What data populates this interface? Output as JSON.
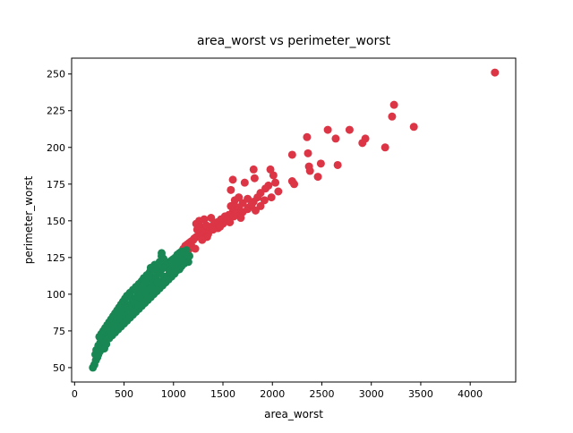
{
  "chart_data": {
    "type": "scatter",
    "title": "area_worst vs perimeter_worst",
    "xlabel": "area_worst",
    "ylabel": "perimeter_worst",
    "xlim": [
      -30,
      4460
    ],
    "ylim": [
      40.2,
      260.8
    ],
    "xticks": [
      0,
      500,
      1000,
      1500,
      2000,
      2500,
      3000,
      3500,
      4000
    ],
    "yticks": [
      50,
      75,
      100,
      125,
      150,
      175,
      200,
      225,
      250
    ],
    "grid": false,
    "legend": "none",
    "series": [
      {
        "color": "#dc3545",
        "points": [
          [
            4250,
            251
          ],
          [
            3230,
            229
          ],
          [
            3210,
            221
          ],
          [
            3430,
            214
          ],
          [
            2560,
            212
          ],
          [
            2780,
            212
          ],
          [
            2350,
            207
          ],
          [
            2640,
            206
          ],
          [
            2940,
            206
          ],
          [
            2910,
            203
          ],
          [
            3140,
            200
          ],
          [
            2360,
            196
          ],
          [
            2200,
            195
          ],
          [
            2490,
            189
          ],
          [
            2660,
            188
          ],
          [
            2370,
            187
          ],
          [
            2380,
            184
          ],
          [
            2460,
            180
          ],
          [
            1810,
            185
          ],
          [
            1980,
            185
          ],
          [
            1820,
            179
          ],
          [
            1600,
            178
          ],
          [
            2010,
            181
          ],
          [
            1720,
            176
          ],
          [
            2030,
            176
          ],
          [
            2200,
            177
          ],
          [
            2220,
            175
          ],
          [
            1960,
            174
          ],
          [
            1930,
            172
          ],
          [
            1580,
            171
          ],
          [
            2060,
            170
          ],
          [
            1880,
            169
          ],
          [
            1990,
            166
          ],
          [
            1660,
            166
          ],
          [
            1620,
            164
          ],
          [
            1750,
            165
          ],
          [
            1850,
            166
          ],
          [
            1810,
            163
          ],
          [
            1920,
            164
          ],
          [
            1880,
            160
          ],
          [
            1830,
            157
          ],
          [
            1760,
            159
          ],
          [
            1700,
            162
          ],
          [
            1660,
            159
          ],
          [
            1620,
            160
          ],
          [
            1580,
            160
          ],
          [
            1600,
            156
          ],
          [
            1560,
            154
          ],
          [
            1640,
            155
          ],
          [
            1700,
            156
          ],
          [
            1750,
            158
          ],
          [
            1790,
            161
          ],
          [
            1520,
            153
          ],
          [
            1480,
            151
          ],
          [
            1440,
            149
          ],
          [
            1400,
            147
          ],
          [
            1360,
            145
          ],
          [
            1320,
            143
          ],
          [
            1290,
            142
          ],
          [
            1260,
            140
          ],
          [
            1230,
            139
          ],
          [
            1200,
            137
          ],
          [
            1180,
            136
          ],
          [
            1160,
            135
          ],
          [
            1140,
            134
          ],
          [
            1120,
            133
          ],
          [
            1100,
            131
          ],
          [
            1380,
            152
          ],
          [
            1310,
            151
          ],
          [
            1260,
            150
          ],
          [
            1230,
            148
          ],
          [
            1240,
            144
          ],
          [
            1270,
            146
          ],
          [
            1330,
            147
          ],
          [
            1420,
            148
          ],
          [
            1450,
            145
          ],
          [
            1500,
            148
          ],
          [
            1530,
            150
          ],
          [
            1470,
            146
          ],
          [
            1350,
            141
          ],
          [
            1300,
            138
          ],
          [
            1210,
            138
          ],
          [
            1180,
            133
          ],
          [
            1220,
            131
          ],
          [
            1130,
            128
          ],
          [
            1110,
            127
          ],
          [
            1150,
            130
          ],
          [
            1080,
            126
          ],
          [
            1060,
            126
          ],
          [
            1400,
            144
          ],
          [
            1550,
            151
          ],
          [
            1610,
            153
          ],
          [
            1680,
            152
          ],
          [
            1570,
            149
          ],
          [
            1340,
            139
          ],
          [
            1290,
            137
          ]
        ]
      },
      {
        "color": "#198754",
        "points": [
          [
            185,
            50
          ],
          [
            200,
            52
          ],
          [
            215,
            55
          ],
          [
            230,
            57
          ],
          [
            240,
            59
          ],
          [
            255,
            61
          ],
          [
            265,
            63
          ],
          [
            275,
            65
          ],
          [
            290,
            67
          ],
          [
            300,
            69
          ],
          [
            315,
            70
          ],
          [
            330,
            72
          ],
          [
            345,
            73
          ],
          [
            360,
            75
          ],
          [
            375,
            76
          ],
          [
            390,
            78
          ],
          [
            405,
            79
          ],
          [
            420,
            81
          ],
          [
            440,
            82
          ],
          [
            455,
            84
          ],
          [
            470,
            85
          ],
          [
            490,
            87
          ],
          [
            505,
            88
          ],
          [
            520,
            90
          ],
          [
            540,
            91
          ],
          [
            560,
            93
          ],
          [
            580,
            94
          ],
          [
            600,
            96
          ],
          [
            620,
            97
          ],
          [
            640,
            99
          ],
          [
            660,
            100
          ],
          [
            680,
            102
          ],
          [
            700,
            103
          ],
          [
            720,
            105
          ],
          [
            740,
            106
          ],
          [
            760,
            108
          ],
          [
            780,
            109
          ],
          [
            800,
            111
          ],
          [
            820,
            112
          ],
          [
            840,
            114
          ],
          [
            860,
            115
          ],
          [
            880,
            117
          ],
          [
            900,
            118
          ],
          [
            920,
            119
          ],
          [
            940,
            121
          ],
          [
            960,
            122
          ],
          [
            980,
            123
          ],
          [
            1000,
            124
          ],
          [
            1020,
            125
          ],
          [
            1040,
            127
          ],
          [
            1060,
            128
          ],
          [
            1080,
            129
          ],
          [
            1100,
            129
          ],
          [
            1120,
            127
          ],
          [
            1140,
            125
          ],
          [
            1100,
            124
          ],
          [
            1090,
            122
          ],
          [
            1060,
            121
          ],
          [
            1040,
            120
          ],
          [
            1010,
            118
          ],
          [
            980,
            116
          ],
          [
            950,
            113
          ],
          [
            910,
            111
          ],
          [
            880,
            109
          ],
          [
            850,
            107
          ],
          [
            820,
            105
          ],
          [
            790,
            103
          ],
          [
            760,
            101
          ],
          [
            730,
            99
          ],
          [
            700,
            97
          ],
          [
            670,
            95
          ],
          [
            640,
            93
          ],
          [
            610,
            91
          ],
          [
            580,
            89
          ],
          [
            550,
            87
          ],
          [
            520,
            85
          ],
          [
            490,
            83
          ],
          [
            460,
            81
          ],
          [
            430,
            79
          ],
          [
            400,
            77
          ],
          [
            370,
            75
          ],
          [
            340,
            73
          ],
          [
            310,
            71
          ],
          [
            280,
            69
          ],
          [
            260,
            67
          ],
          [
            240,
            65
          ],
          [
            220,
            62
          ],
          [
            210,
            59
          ],
          [
            300,
            63
          ],
          [
            320,
            66
          ],
          [
            350,
            70
          ],
          [
            380,
            72
          ],
          [
            410,
            74
          ],
          [
            440,
            76
          ],
          [
            470,
            78
          ],
          [
            500,
            80
          ],
          [
            530,
            82
          ],
          [
            560,
            84
          ],
          [
            590,
            86
          ],
          [
            620,
            88
          ],
          [
            650,
            90
          ],
          [
            680,
            92
          ],
          [
            710,
            94
          ],
          [
            740,
            96
          ],
          [
            770,
            98
          ],
          [
            800,
            100
          ],
          [
            830,
            102
          ],
          [
            860,
            104
          ],
          [
            890,
            106
          ],
          [
            920,
            108
          ],
          [
            950,
            110
          ],
          [
            980,
            112
          ],
          [
            1010,
            114
          ],
          [
            1030,
            116
          ],
          [
            1060,
            117
          ],
          [
            1080,
            119
          ],
          [
            1110,
            121
          ],
          [
            1150,
            122
          ],
          [
            1160,
            126
          ],
          [
            1130,
            130
          ],
          [
            1100,
            126
          ],
          [
            1070,
            124
          ],
          [
            1050,
            122
          ],
          [
            900,
            124
          ],
          [
            880,
            126
          ],
          [
            860,
            122
          ],
          [
            820,
            119
          ],
          [
            790,
            117
          ],
          [
            760,
            115
          ],
          [
            730,
            113
          ],
          [
            700,
            111
          ],
          [
            680,
            109
          ],
          [
            650,
            107
          ],
          [
            620,
            105
          ],
          [
            590,
            103
          ],
          [
            560,
            101
          ],
          [
            530,
            99
          ],
          [
            510,
            97
          ],
          [
            490,
            95
          ],
          [
            470,
            93
          ],
          [
            450,
            91
          ],
          [
            430,
            89
          ],
          [
            410,
            87
          ],
          [
            390,
            85
          ],
          [
            370,
            83
          ],
          [
            350,
            81
          ],
          [
            330,
            79
          ],
          [
            310,
            77
          ],
          [
            290,
            75
          ],
          [
            270,
            73
          ],
          [
            250,
            71
          ],
          [
            420,
            85
          ],
          [
            450,
            88
          ],
          [
            480,
            90
          ],
          [
            540,
            92
          ],
          [
            600,
            95
          ],
          [
            660,
            98
          ],
          [
            720,
            101
          ],
          [
            780,
            104
          ],
          [
            840,
            108
          ],
          [
            900,
            112
          ],
          [
            960,
            116
          ],
          [
            1000,
            119
          ],
          [
            750,
            112
          ],
          [
            720,
            108
          ],
          [
            690,
            106
          ],
          [
            630,
            102
          ],
          [
            570,
            98
          ],
          [
            880,
            128
          ],
          [
            810,
            120
          ],
          [
            770,
            118
          ],
          [
            700,
            104
          ]
        ]
      }
    ]
  }
}
